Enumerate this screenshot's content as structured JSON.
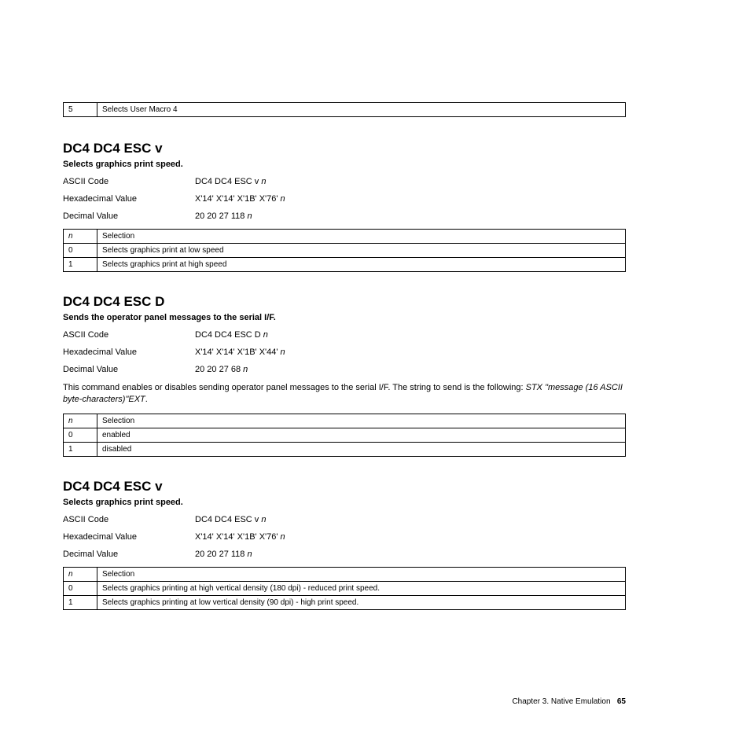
{
  "top_table": {
    "n": "5",
    "desc": "Selects User Macro 4"
  },
  "sections": [
    {
      "title": "DC4 DC4 ESC v",
      "subtitle": "Selects graphics print speed.",
      "ascii_label": "ASCII Code",
      "ascii_value": "DC4 DC4 ESC v ",
      "ascii_n": "n",
      "hex_label": "Hexadecimal Value",
      "hex_value": "X'14' X'14' X'1B' X'76' ",
      "hex_n": "n",
      "dec_label": "Decimal Value",
      "dec_value": "20 20 27 118 ",
      "dec_n": "n",
      "table_header_n": "n",
      "table_header_sel": "Selection",
      "rows": [
        {
          "n": "0",
          "desc": "Selects graphics print at low speed"
        },
        {
          "n": "1",
          "desc": "Selects graphics print at high speed"
        }
      ]
    },
    {
      "title": "DC4 DC4 ESC D",
      "subtitle": "Sends the operator panel messages to the serial I/F.",
      "ascii_label": "ASCII Code",
      "ascii_value": "DC4 DC4 ESC D ",
      "ascii_n": "n",
      "hex_label": "Hexadecimal Value",
      "hex_value": "X'14' X'14' X'1B' X'44' ",
      "hex_n": "n",
      "dec_label": "Decimal Value",
      "dec_value": "20 20 27 68 ",
      "dec_n": "n",
      "para_pre": "This command enables or disables sending operator panel messages to the serial I/F. The string to send is the following: ",
      "para_italic": "STX \"message (16 ASCII byte-characters)\"EXT",
      "para_post": ".",
      "table_header_n": "n",
      "table_header_sel": "Selection",
      "rows": [
        {
          "n": "0",
          "desc": "enabled"
        },
        {
          "n": "1",
          "desc": "disabled"
        }
      ]
    },
    {
      "title": "DC4 DC4 ESC v",
      "subtitle": "Selects graphics print speed.",
      "ascii_label": "ASCII Code",
      "ascii_value": "DC4 DC4 ESC v ",
      "ascii_n": "n",
      "hex_label": "Hexadecimal Value",
      "hex_value": "X'14' X'14' X'1B' X'76' ",
      "hex_n": "n",
      "dec_label": "Decimal Value",
      "dec_value": "20 20 27 118 ",
      "dec_n": "n",
      "table_header_n": "n",
      "table_header_sel": "Selection",
      "rows": [
        {
          "n": "0",
          "desc": "Selects graphics printing at high vertical density (180 dpi) - reduced print speed."
        },
        {
          "n": "1",
          "desc": "Selects graphics printing at low vertical density (90 dpi) - high print speed."
        }
      ]
    }
  ],
  "footer": {
    "chapter": "Chapter 3. Native Emulation",
    "page": "65"
  }
}
